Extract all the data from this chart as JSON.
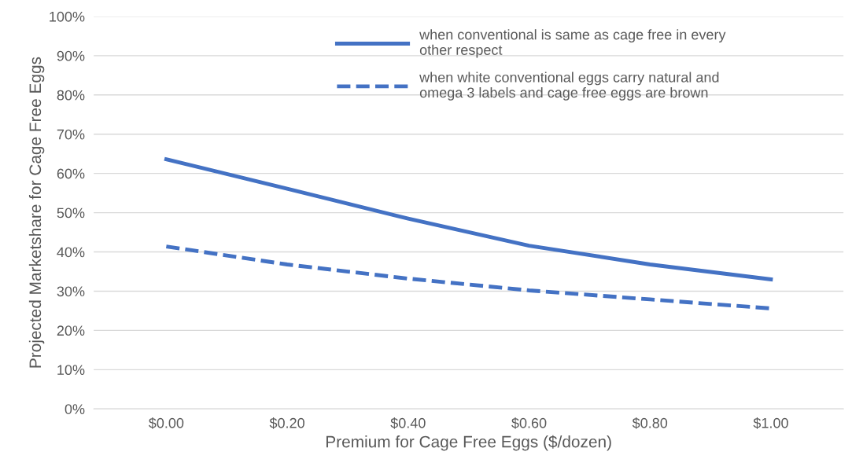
{
  "chart_data": {
    "type": "line",
    "xlabel": "Premium for Cage Free Eggs ($/dozen)",
    "ylabel": "Projected Marketshare for Cage Free Eggs",
    "categories": [
      "$0.00",
      "$0.20",
      "$0.40",
      "$0.60",
      "$0.80",
      "$1.00"
    ],
    "series": [
      {
        "name": "when conventional is same as cage free in every\nother respect",
        "color": "#4472c4",
        "line_style": "solid",
        "values": [
          63.6,
          56.1,
          48.5,
          41.6,
          36.8,
          33.0
        ]
      },
      {
        "name": "when white conventional eggs carry natural and\nomega 3 labels and cage free eggs are brown",
        "color": "#4472c4",
        "line_style": "dashed",
        "values": [
          41.4,
          36.8,
          33.2,
          30.2,
          27.9,
          25.6
        ]
      }
    ],
    "ylim": [
      0,
      100
    ],
    "yticks": [
      {
        "value": 0,
        "label": "0%"
      },
      {
        "value": 10,
        "label": "10%"
      },
      {
        "value": 20,
        "label": "20%"
      },
      {
        "value": 30,
        "label": "30%"
      },
      {
        "value": 40,
        "label": "40%"
      },
      {
        "value": 50,
        "label": "50%"
      },
      {
        "value": 60,
        "label": "60%"
      },
      {
        "value": 70,
        "label": "70%"
      },
      {
        "value": 80,
        "label": "80%"
      },
      {
        "value": 90,
        "label": "90%"
      },
      {
        "value": 100,
        "label": "100%"
      }
    ],
    "grid": "y",
    "legend": "top right",
    "marker": "none"
  }
}
